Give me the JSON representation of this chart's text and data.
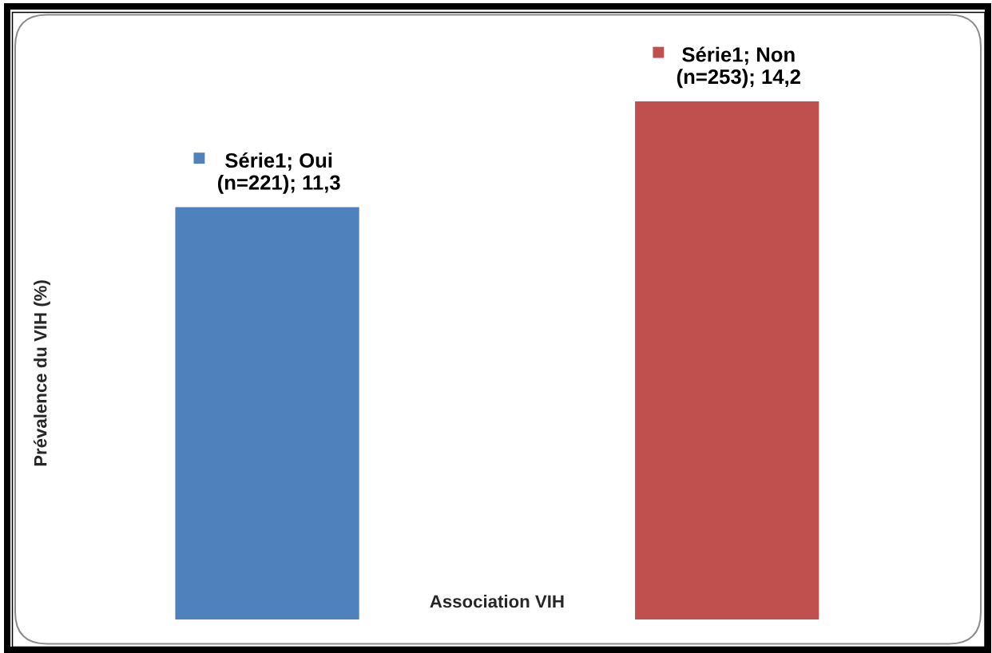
{
  "chart_data": {
    "type": "bar",
    "categories": [
      null,
      null
    ],
    "values": [
      11.3,
      14.2
    ],
    "colors": [
      "#4f81bd",
      "#c0504d"
    ],
    "value_labels": [
      "Série1; Oui\n(n=221); 11,3",
      "Série1; Non\n(n=253); 14,2"
    ],
    "xlabel": "Association VIH",
    "ylabel": "Prévalence du VIH (%)",
    "tick_labels": false
  }
}
